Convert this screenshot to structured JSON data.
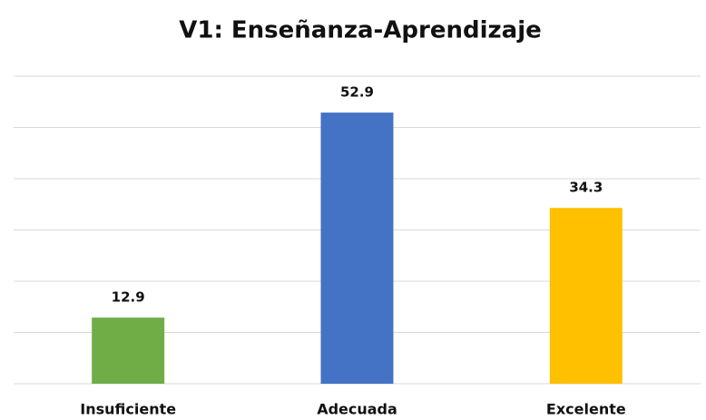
{
  "chart_data": {
    "type": "bar",
    "title": "V1: Enseñanza-Aprendizaje",
    "categories": [
      "Insuficiente",
      "Adecuada",
      "Excelente"
    ],
    "values": [
      12.9,
      52.9,
      34.3
    ],
    "colors": [
      "#70ad47",
      "#4472c4",
      "#ffc000"
    ],
    "ylim": [
      0,
      60
    ],
    "yticks": [
      0,
      10,
      20,
      30,
      40,
      50,
      60
    ],
    "grid": true
  }
}
